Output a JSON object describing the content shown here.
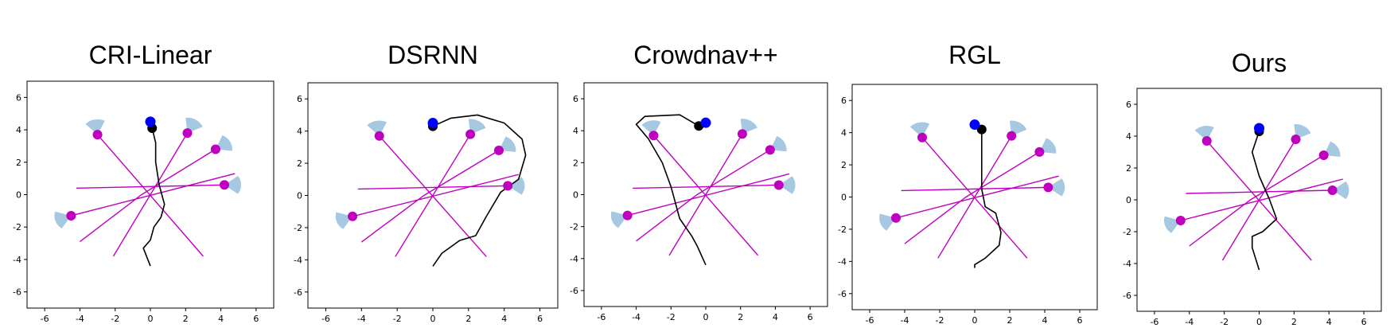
{
  "colors": {
    "robot": "#0000ff",
    "goal": "#000000",
    "trajectory": "#000000",
    "human": "#bf00bf",
    "human_path": "#bf00bf",
    "fov_wedge": "#a6c8e0"
  },
  "chart_data": [
    {
      "type": "trajectory",
      "title": "CRI-Linear",
      "xlim": [
        -7,
        7
      ],
      "ylim": [
        -7,
        7
      ],
      "xticks": [
        -6,
        -4,
        -2,
        0,
        2,
        4,
        6
      ],
      "yticks": [
        -6,
        -4,
        -2,
        0,
        2,
        4,
        6
      ],
      "grid": false,
      "robot": [
        0.0,
        4.5
      ],
      "goal": [
        0.1,
        4.1
      ],
      "trajectory": [
        [
          0.1,
          4.1
        ],
        [
          0.3,
          3.2
        ],
        [
          0.3,
          2.0
        ],
        [
          0.5,
          0.6
        ],
        [
          0.8,
          -0.6
        ],
        [
          0.6,
          -1.4
        ],
        [
          0.2,
          -2.0
        ],
        [
          0.0,
          -2.8
        ],
        [
          -0.4,
          -3.3
        ],
        [
          0.0,
          -4.4
        ]
      ],
      "humans": [
        {
          "pos": [
            -3.0,
            3.7
          ],
          "path": [
            [
              -3.0,
              3.7
            ],
            [
              3.0,
              -3.8
            ]
          ],
          "fov_dir": 100
        },
        {
          "pos": [
            2.1,
            3.8
          ],
          "path": [
            [
              2.1,
              3.8
            ],
            [
              -2.1,
              -3.8
            ]
          ],
          "fov_dir": 60
        },
        {
          "pos": [
            3.7,
            2.8
          ],
          "path": [
            [
              3.7,
              2.8
            ],
            [
              -0.5,
              0.0
            ],
            [
              -4.0,
              -2.9
            ]
          ],
          "fov_dir": 30
        },
        {
          "pos": [
            4.2,
            0.6
          ],
          "path": [
            [
              4.2,
              0.6
            ],
            [
              -4.2,
              0.4
            ]
          ],
          "fov_dir": 0
        },
        {
          "pos": [
            -4.5,
            -1.3
          ],
          "path": [
            [
              -4.5,
              -1.3
            ],
            [
              4.8,
              1.3
            ]
          ],
          "fov_dir": 200
        }
      ]
    },
    {
      "type": "trajectory",
      "title": "DSRNN",
      "xlim": [
        -7,
        7
      ],
      "ylim": [
        -7,
        7
      ],
      "xticks": [
        -6,
        -4,
        -2,
        0,
        2,
        4,
        6
      ],
      "yticks": [
        -6,
        -4,
        -2,
        0,
        2,
        4,
        6
      ],
      "grid": false,
      "robot": [
        0.0,
        4.5
      ],
      "goal": [
        0.0,
        4.3
      ],
      "trajectory": [
        [
          0.0,
          4.3
        ],
        [
          1.0,
          4.8
        ],
        [
          2.5,
          5.0
        ],
        [
          4.0,
          4.5
        ],
        [
          5.0,
          3.5
        ],
        [
          5.2,
          2.5
        ],
        [
          4.8,
          1.0
        ],
        [
          3.8,
          0.2
        ],
        [
          3.0,
          -1.3
        ],
        [
          2.4,
          -2.5
        ],
        [
          1.5,
          -2.8
        ],
        [
          0.5,
          -3.6
        ],
        [
          0.0,
          -4.4
        ]
      ],
      "humans": [
        {
          "pos": [
            -3.0,
            3.7
          ],
          "path": [
            [
              -3.0,
              3.7
            ],
            [
              3.0,
              -3.8
            ]
          ],
          "fov_dir": 100
        },
        {
          "pos": [
            2.1,
            3.8
          ],
          "path": [
            [
              2.1,
              3.8
            ],
            [
              -2.1,
              -3.8
            ]
          ],
          "fov_dir": 60
        },
        {
          "pos": [
            3.7,
            2.8
          ],
          "path": [
            [
              3.7,
              2.8
            ],
            [
              -0.5,
              0.0
            ],
            [
              -4.0,
              -2.9
            ]
          ],
          "fov_dir": 30
        },
        {
          "pos": [
            4.2,
            0.6
          ],
          "path": [
            [
              4.2,
              0.6
            ],
            [
              -4.2,
              0.4
            ]
          ],
          "fov_dir": 0
        },
        {
          "pos": [
            -4.5,
            -1.3
          ],
          "path": [
            [
              -4.5,
              -1.3
            ],
            [
              4.8,
              1.3
            ]
          ],
          "fov_dir": 200
        }
      ]
    },
    {
      "type": "trajectory",
      "title": "Crowdnav++",
      "xlim": [
        -7,
        7
      ],
      "ylim": [
        -7,
        7
      ],
      "xticks": [
        -6,
        -4,
        -2,
        0,
        2,
        4,
        6
      ],
      "yticks": [
        -6,
        -4,
        -2,
        0,
        2,
        4,
        6
      ],
      "grid": false,
      "robot": [
        0.0,
        4.5
      ],
      "goal": [
        -0.4,
        4.3
      ],
      "trajectory": [
        [
          -0.4,
          4.3
        ],
        [
          -1.5,
          5.0
        ],
        [
          -3.5,
          4.9
        ],
        [
          -4.0,
          4.4
        ],
        [
          -3.3,
          3.5
        ],
        [
          -2.5,
          2.0
        ],
        [
          -2.0,
          0.5
        ],
        [
          -1.5,
          -1.5
        ],
        [
          -0.8,
          -2.6
        ],
        [
          -0.5,
          -3.2
        ],
        [
          0.0,
          -4.4
        ]
      ],
      "humans": [
        {
          "pos": [
            -3.0,
            3.7
          ],
          "path": [
            [
              -3.0,
              3.7
            ],
            [
              3.0,
              -3.8
            ]
          ],
          "fov_dir": 100
        },
        {
          "pos": [
            2.1,
            3.8
          ],
          "path": [
            [
              2.1,
              3.8
            ],
            [
              -2.1,
              -3.8
            ]
          ],
          "fov_dir": 60
        },
        {
          "pos": [
            3.7,
            2.8
          ],
          "path": [
            [
              3.7,
              2.8
            ],
            [
              -0.5,
              0.0
            ],
            [
              -4.0,
              -2.9
            ]
          ],
          "fov_dir": 30
        },
        {
          "pos": [
            4.2,
            0.6
          ],
          "path": [
            [
              4.2,
              0.6
            ],
            [
              -4.2,
              0.4
            ]
          ],
          "fov_dir": 0
        },
        {
          "pos": [
            -4.5,
            -1.3
          ],
          "path": [
            [
              -4.5,
              -1.3
            ],
            [
              4.8,
              1.3
            ]
          ],
          "fov_dir": 200
        }
      ]
    },
    {
      "type": "trajectory",
      "title": "RGL",
      "xlim": [
        -7,
        7
      ],
      "ylim": [
        -7,
        7
      ],
      "xticks": [
        -6,
        -4,
        -2,
        0,
        2,
        4,
        6
      ],
      "yticks": [
        -6,
        -4,
        -2,
        0,
        2,
        4,
        6
      ],
      "grid": false,
      "robot": [
        0.0,
        4.5
      ],
      "goal": [
        0.4,
        4.2
      ],
      "trajectory": [
        [
          0.4,
          4.2
        ],
        [
          0.4,
          2.5
        ],
        [
          0.4,
          0.5
        ],
        [
          0.6,
          -0.6
        ],
        [
          1.2,
          -1.0
        ],
        [
          1.5,
          -2.2
        ],
        [
          1.4,
          -3.0
        ],
        [
          0.6,
          -3.8
        ],
        [
          0.0,
          -4.2
        ],
        [
          0.0,
          -4.4
        ]
      ],
      "humans": [
        {
          "pos": [
            -3.0,
            3.7
          ],
          "path": [
            [
              -3.0,
              3.7
            ],
            [
              3.0,
              -3.8
            ]
          ],
          "fov_dir": 100
        },
        {
          "pos": [
            2.1,
            3.8
          ],
          "path": [
            [
              2.1,
              3.8
            ],
            [
              -2.1,
              -3.8
            ]
          ],
          "fov_dir": 60
        },
        {
          "pos": [
            3.7,
            2.8
          ],
          "path": [
            [
              3.7,
              2.8
            ],
            [
              -0.5,
              0.0
            ],
            [
              -4.0,
              -2.9
            ]
          ],
          "fov_dir": 30
        },
        {
          "pos": [
            4.2,
            0.6
          ],
          "path": [
            [
              4.2,
              0.6
            ],
            [
              -4.2,
              0.4
            ]
          ],
          "fov_dir": 0
        },
        {
          "pos": [
            -4.5,
            -1.3
          ],
          "path": [
            [
              -4.5,
              -1.3
            ],
            [
              4.8,
              1.3
            ]
          ],
          "fov_dir": 200
        }
      ]
    },
    {
      "type": "trajectory",
      "title": "Ours",
      "xlim": [
        -7,
        7
      ],
      "ylim": [
        -7,
        7
      ],
      "xticks": [
        -6,
        -4,
        -2,
        0,
        2,
        4,
        6
      ],
      "yticks": [
        -6,
        -4,
        -2,
        0,
        2,
        4,
        6
      ],
      "grid": false,
      "robot": [
        0.0,
        4.5
      ],
      "goal": [
        0.0,
        4.3
      ],
      "trajectory": [
        [
          0.0,
          4.3
        ],
        [
          -0.4,
          3.0
        ],
        [
          0.0,
          1.5
        ],
        [
          0.6,
          0.0
        ],
        [
          1.0,
          -1.2
        ],
        [
          0.2,
          -2.0
        ],
        [
          -0.4,
          -2.3
        ],
        [
          -0.4,
          -3.0
        ],
        [
          0.0,
          -4.4
        ]
      ],
      "humans": [
        {
          "pos": [
            -3.0,
            3.7
          ],
          "path": [
            [
              -3.0,
              3.7
            ],
            [
              3.0,
              -3.8
            ]
          ],
          "fov_dir": 100
        },
        {
          "pos": [
            2.1,
            3.8
          ],
          "path": [
            [
              2.1,
              3.8
            ],
            [
              -2.1,
              -3.8
            ]
          ],
          "fov_dir": 60
        },
        {
          "pos": [
            3.7,
            2.8
          ],
          "path": [
            [
              3.7,
              2.8
            ],
            [
              -0.5,
              0.0
            ],
            [
              -4.0,
              -2.9
            ]
          ],
          "fov_dir": 30
        },
        {
          "pos": [
            4.2,
            0.6
          ],
          "path": [
            [
              4.2,
              0.6
            ],
            [
              -4.2,
              0.4
            ]
          ],
          "fov_dir": 0
        },
        {
          "pos": [
            -4.5,
            -1.3
          ],
          "path": [
            [
              -4.5,
              -1.3
            ],
            [
              4.8,
              1.3
            ]
          ],
          "fov_dir": 200
        }
      ]
    }
  ]
}
